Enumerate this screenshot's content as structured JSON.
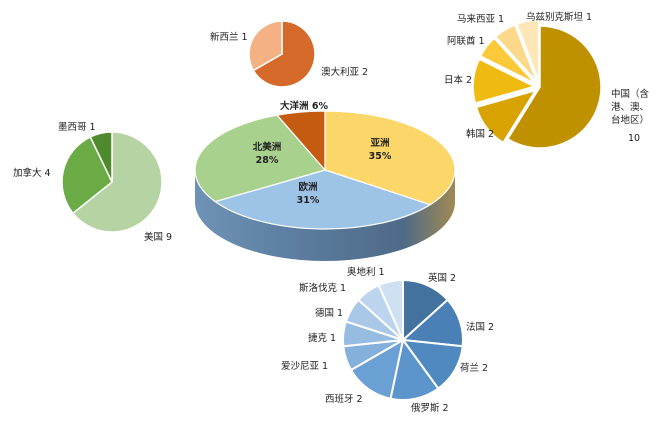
{
  "chart_data": [
    {
      "type": "pie",
      "style": "3d-pie",
      "name": "continents",
      "values": [
        {
          "label": "亚洲",
          "value": 35,
          "value_label": "35%",
          "color": "#fbd76a"
        },
        {
          "label": "欧洲",
          "value": 31,
          "value_label": "31%",
          "color": "#9dc3e6"
        },
        {
          "label": "北美洲",
          "value": 28,
          "value_label": "28%",
          "color": "#a9d18e"
        },
        {
          "label": "大洋洲",
          "value": 6,
          "value_label": "大洋洲 6%",
          "color": "#c55a11"
        }
      ]
    },
    {
      "type": "pie",
      "name": "oceania",
      "values": [
        {
          "label": "澳大利亚",
          "value": 2,
          "value_label": "澳大利亚 2",
          "color": "#d5692a"
        },
        {
          "label": "新西兰",
          "value": 1,
          "value_label": "新西兰 1",
          "color": "#f4b183"
        }
      ]
    },
    {
      "type": "pie",
      "name": "asia",
      "values": [
        {
          "label": "中国（含港、澳、台地区）",
          "value": 10,
          "value_label_lines": [
            "中国（含",
            "港、澳、",
            "台地区）",
            "10"
          ],
          "color": "#bf9000"
        },
        {
          "label": "韩国",
          "value": 2,
          "value_label": "韩国 2",
          "color": "#d8a300"
        },
        {
          "label": "日本",
          "value": 2,
          "value_label": "日本 2",
          "color": "#f0bb10"
        },
        {
          "label": "阿联酋",
          "value": 1,
          "value_label": "阿联酋 1",
          "color": "#fcc93a"
        },
        {
          "label": "马来西亚",
          "value": 1,
          "value_label": "马来西亚 1",
          "color": "#fcd98a"
        },
        {
          "label": "乌兹别克斯坦",
          "value": 1,
          "value_label": "乌兹别克斯坦 1",
          "color": "#fde7b8"
        }
      ]
    },
    {
      "type": "pie",
      "name": "north-america",
      "values": [
        {
          "label": "美国",
          "value": 9,
          "value_label": "美国 9",
          "color": "#b5d3a3"
        },
        {
          "label": "加拿大",
          "value": 4,
          "value_label": "加拿大 4",
          "color": "#6aab45"
        },
        {
          "label": "墨西哥",
          "value": 1,
          "value_label": "墨西哥 1",
          "color": "#4f8a2e"
        }
      ]
    },
    {
      "type": "pie",
      "name": "europe",
      "values": [
        {
          "label": "英国",
          "value": 2,
          "value_label": "英国 2",
          "color": "#44729f"
        },
        {
          "label": "法国",
          "value": 2,
          "value_label": "法国 2",
          "color": "#4a80b5"
        },
        {
          "label": "荷兰",
          "value": 2,
          "value_label": "荷兰 2",
          "color": "#4f89c0"
        },
        {
          "label": "俄罗斯",
          "value": 2,
          "value_label": "俄罗斯 2",
          "color": "#5b95cc"
        },
        {
          "label": "西班牙",
          "value": 2,
          "value_label": "西班牙 2",
          "color": "#6aa0d4"
        },
        {
          "label": "爱沙尼亚",
          "value": 1,
          "value_label": "爱沙尼亚 1",
          "color": "#85b0dc"
        },
        {
          "label": "捷克",
          "value": 1,
          "value_label": "捷克 1",
          "color": "#97bce2"
        },
        {
          "label": "德国",
          "value": 1,
          "value_label": "德国 1",
          "color": "#a9c8e8"
        },
        {
          "label": "斯洛伐克",
          "value": 1,
          "value_label": "斯洛伐克 1",
          "color": "#bcd4ed"
        },
        {
          "label": "奥地利",
          "value": 1,
          "value_label": "奥地利 1",
          "color": "#cfe0f2"
        }
      ]
    }
  ]
}
